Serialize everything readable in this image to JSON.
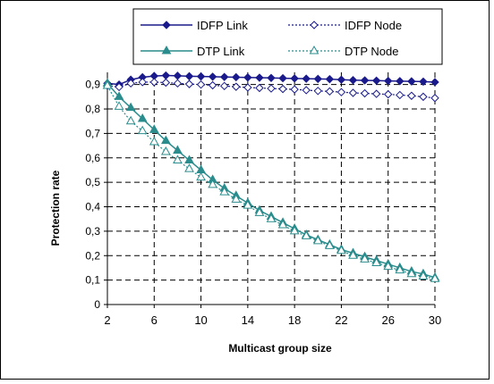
{
  "colors": {
    "idfp": "#1a1a8c",
    "dtp": "#2a8c8c",
    "grid": "#000000",
    "frame": "#000000",
    "background": "#ffffff"
  },
  "chart_data": {
    "type": "line",
    "title": "",
    "xlabel": "Multicast group size",
    "ylabel": "Protection rate",
    "xlim": [
      2,
      30
    ],
    "ylim": [
      0,
      0.95
    ],
    "x_ticks": [
      "2",
      "6",
      "10",
      "14",
      "18",
      "22",
      "26",
      "30"
    ],
    "y_ticks": [
      "0",
      "0,1",
      "0,2",
      "0,3",
      "0,4",
      "0,5",
      "0,6",
      "0,7",
      "0,8",
      "0,9"
    ],
    "grid": "dashed vertical and horizontal",
    "legend_position": "top",
    "x": [
      2,
      3,
      4,
      5,
      6,
      7,
      8,
      9,
      10,
      11,
      12,
      13,
      14,
      15,
      16,
      17,
      18,
      19,
      20,
      21,
      22,
      23,
      24,
      25,
      26,
      27,
      28,
      29,
      30
    ],
    "series": [
      {
        "name": "IDFP Link",
        "style": "solid",
        "marker": "filled-diamond",
        "color": "#1a1a8c",
        "values": [
          0.905,
          0.9,
          0.92,
          0.93,
          0.935,
          0.937,
          0.936,
          0.934,
          0.933,
          0.932,
          0.931,
          0.93,
          0.929,
          0.928,
          0.927,
          0.926,
          0.925,
          0.924,
          0.923,
          0.922,
          0.92,
          0.918,
          0.917,
          0.916,
          0.915,
          0.914,
          0.913,
          0.912,
          0.91
        ]
      },
      {
        "name": "IDFP Node",
        "style": "dotted",
        "marker": "open-diamond",
        "color": "#1a1a8c",
        "values": [
          0.895,
          0.89,
          0.905,
          0.91,
          0.91,
          0.908,
          0.905,
          0.902,
          0.9,
          0.897,
          0.894,
          0.891,
          0.888,
          0.886,
          0.884,
          0.882,
          0.88,
          0.877,
          0.874,
          0.872,
          0.869,
          0.866,
          0.864,
          0.862,
          0.86,
          0.857,
          0.854,
          0.85,
          0.845
        ]
      },
      {
        "name": "DTP Link",
        "style": "solid",
        "marker": "filled-triangle",
        "color": "#2a8c8c",
        "values": [
          0.905,
          0.85,
          0.805,
          0.76,
          0.715,
          0.67,
          0.63,
          0.59,
          0.55,
          0.51,
          0.475,
          0.445,
          0.415,
          0.385,
          0.36,
          0.335,
          0.31,
          0.285,
          0.265,
          0.245,
          0.225,
          0.21,
          0.195,
          0.18,
          0.165,
          0.15,
          0.135,
          0.125,
          0.11
        ]
      },
      {
        "name": "DTP Node",
        "style": "dotted",
        "marker": "open-triangle",
        "color": "#2a8c8c",
        "values": [
          0.895,
          0.81,
          0.75,
          0.71,
          0.665,
          0.625,
          0.59,
          0.555,
          0.52,
          0.49,
          0.46,
          0.43,
          0.405,
          0.375,
          0.35,
          0.325,
          0.3,
          0.28,
          0.26,
          0.24,
          0.22,
          0.2,
          0.185,
          0.17,
          0.155,
          0.14,
          0.125,
          0.115,
          0.105
        ]
      }
    ]
  }
}
